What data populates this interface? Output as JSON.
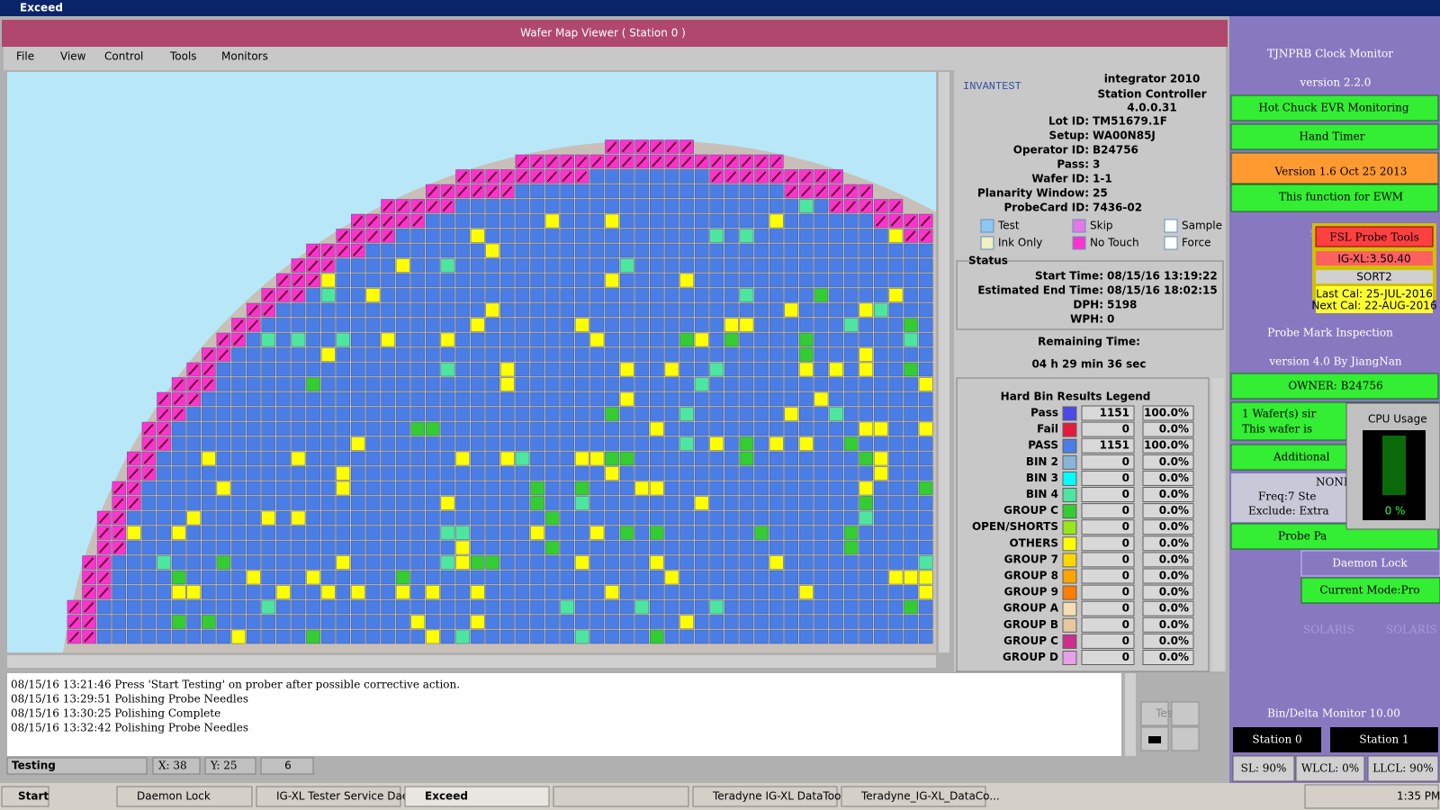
{
  "window_title": "Exceed",
  "viewer": {
    "title": "Wafer Map Viewer ( Station 0 )",
    "menu": [
      "File",
      "View",
      "Control",
      "Tools",
      "Monitors"
    ]
  },
  "info": {
    "brand": "INVANTEST",
    "product": "integrator 2010",
    "subtitle": "Station Controller",
    "version": "4.0.0.31",
    "fields": [
      {
        "label": "Lot ID:",
        "value": "TM51679.1F"
      },
      {
        "label": "Setup:",
        "value": "WA00N85J"
      },
      {
        "label": "Operator ID:",
        "value": "B24756"
      },
      {
        "label": "Pass:",
        "value": "3"
      },
      {
        "label": "Wafer ID:",
        "value": "1-1"
      },
      {
        "label": "Planarity Window:",
        "value": "25"
      },
      {
        "label": "ProbeCard ID:",
        "value": "7436-02"
      }
    ],
    "legend": [
      {
        "label": "Test",
        "color": "#8ec8f0"
      },
      {
        "label": "Skip",
        "color": "#e678e6"
      },
      {
        "label": "Sample",
        "color": "#ffffff"
      },
      {
        "label": "Ink Only",
        "color": "#f0f0c0"
      },
      {
        "label": "No Touch",
        "color": "#ff33cc"
      },
      {
        "label": "Force",
        "color": "#ffffff"
      }
    ]
  },
  "status": {
    "title": "Status",
    "fields": [
      {
        "label": "Start Time:",
        "value": "08/15/16 13:19:22"
      },
      {
        "label": "Estimated End Time:",
        "value": "08/15/16 18:02:15"
      },
      {
        "label": "DPH:",
        "value": "5198"
      },
      {
        "label": "WPH:",
        "value": "0"
      }
    ],
    "remaining_label": "Remaining Time:",
    "remaining_value": "04 h 29 min 36 sec"
  },
  "bin_legend": {
    "title": "Hard Bin Results Legend",
    "rows": [
      {
        "name": "Pass",
        "color": "#4a4ae6",
        "count": 1151,
        "percent": "100.0%"
      },
      {
        "name": "Fail",
        "color": "#e6193c",
        "count": 0,
        "percent": "0.0%"
      },
      {
        "name": "PASS",
        "color": "#4a7ee6",
        "count": 1151,
        "percent": "100.0%"
      },
      {
        "name": "BIN 2",
        "color": "#8ab4d8",
        "count": 0,
        "percent": "0.0%"
      },
      {
        "name": "BIN 3",
        "color": "#00ffff",
        "count": 0,
        "percent": "0.0%"
      },
      {
        "name": "BIN 4",
        "color": "#4de6a0",
        "count": 0,
        "percent": "0.0%"
      },
      {
        "name": "GROUP C",
        "color": "#33cc33",
        "count": 0,
        "percent": "0.0%"
      },
      {
        "name": "OPEN/SHORTS",
        "color": "#99e619",
        "count": 0,
        "percent": "0.0%"
      },
      {
        "name": "OTHERS",
        "color": "#ffff00",
        "count": 0,
        "percent": "0.0%"
      },
      {
        "name": "GROUP 7",
        "color": "#ffd700",
        "count": 0,
        "percent": "0.0%"
      },
      {
        "name": "GROUP 8",
        "color": "#ffa500",
        "count": 0,
        "percent": "0.0%"
      },
      {
        "name": "GROUP 9",
        "color": "#ff7f00",
        "count": 0,
        "percent": "0.0%"
      },
      {
        "name": "GROUP A",
        "color": "#f5deb3",
        "count": 0,
        "percent": "0.0%"
      },
      {
        "name": "GROUP B",
        "color": "#e6c8a0",
        "count": 0,
        "percent": "0.0%"
      },
      {
        "name": "GROUP C",
        "color": "#cc2e8a",
        "count": 0,
        "percent": "0.0%"
      },
      {
        "name": "GROUP D",
        "color": "#e6a0e6",
        "count": 0,
        "percent": "0.0%"
      }
    ]
  },
  "log": [
    "08/15/16 13:21:46   Press 'Start Testing' on prober after possible corrective action.",
    "08/15/16 13:29:51 Polishing Probe Needles",
    "08/15/16 13:30:25 Polishing Complete",
    "08/15/16 13:32:42 Polishing Probe Needles"
  ],
  "statusbar": {
    "state": "Testing",
    "x": "X: 38",
    "y": "Y: 25",
    "site": "6"
  },
  "test_button": "Test",
  "side": {
    "clock": "TJNPRB Clock Monitor",
    "clock_version": "version 2.2.0",
    "evr": "Hot Chuck EVR Monitoring",
    "hand_timer": "Hand Timer",
    "ewm_version": "Version 1.6 Oct 25 2013",
    "ewm_note": "This function for EWM",
    "fsl": "FSL Probe Tools",
    "igxl": "IG-XL:3.50.40",
    "sort": "SORT2",
    "last_cal": "Last Cal: 25-JUL-2016",
    "next_cal": "Next Cal: 22-AUG-2016",
    "pmi": "Probe Mark Inspection",
    "pmi_version": "version 4.0 By JiangNan",
    "owner": "OWNER: B24756",
    "wafer_line1": "1 Wafer(s) sir",
    "wafer_line2": "This wafer is",
    "additional": "Additional",
    "none": "NONE",
    "freq": "Freq:7 Ste",
    "exclude": "Exclude: Extra",
    "probe_pa": "Probe Pa",
    "daemon": "Daemon Lock",
    "mode": "Current Mode:Pro",
    "cpu_title": "CPU Usage",
    "cpu_value": "0 %",
    "bin_delta": "Bin/Delta Monitor 10.00",
    "station0": "Station 0",
    "station1": "Station 1",
    "sl": "SL: 90%",
    "wlcl": "WLCL: 0%",
    "llcl": "LLCL: 90%",
    "watermark": "SOLARIS"
  },
  "taskbar": {
    "start": "Start",
    "items": [
      "Daemon Lock",
      "IG-XL Tester Service Dae...",
      "Exceed",
      "",
      "Teradyne IG-XL DataToo...",
      "Teradyne_IG-XL_DataCo..."
    ],
    "clock": "1:35 PM"
  }
}
